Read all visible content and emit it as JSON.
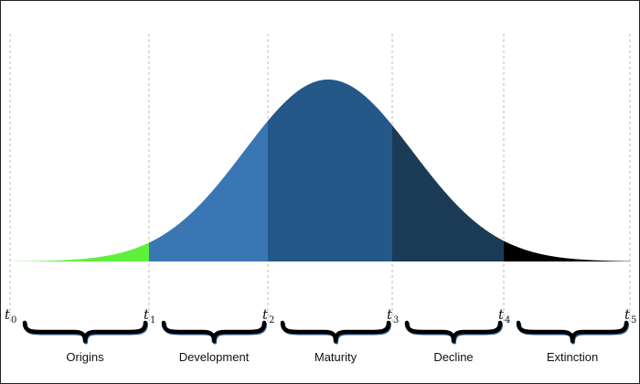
{
  "diagram": {
    "phases": [
      {
        "label": "Origins",
        "color": "#5ef03a"
      },
      {
        "label": "Development",
        "color": "#3a76b4"
      },
      {
        "label": "Maturity",
        "color": "#245889"
      },
      {
        "label": "Decline",
        "color": "#1b3b56"
      },
      {
        "label": "Extinction",
        "color": "#000000"
      }
    ],
    "time_points": [
      {
        "base": "t",
        "sub": "0"
      },
      {
        "base": "t",
        "sub": "1"
      },
      {
        "base": "t",
        "sub": "2"
      },
      {
        "base": "t",
        "sub": "3"
      },
      {
        "base": "t",
        "sub": "4"
      },
      {
        "base": "t",
        "sub": "5"
      }
    ],
    "colors": {
      "guide_line": "#b9b9b9",
      "brace": "#000000",
      "brace_shadow": "#2c5c8a"
    }
  }
}
